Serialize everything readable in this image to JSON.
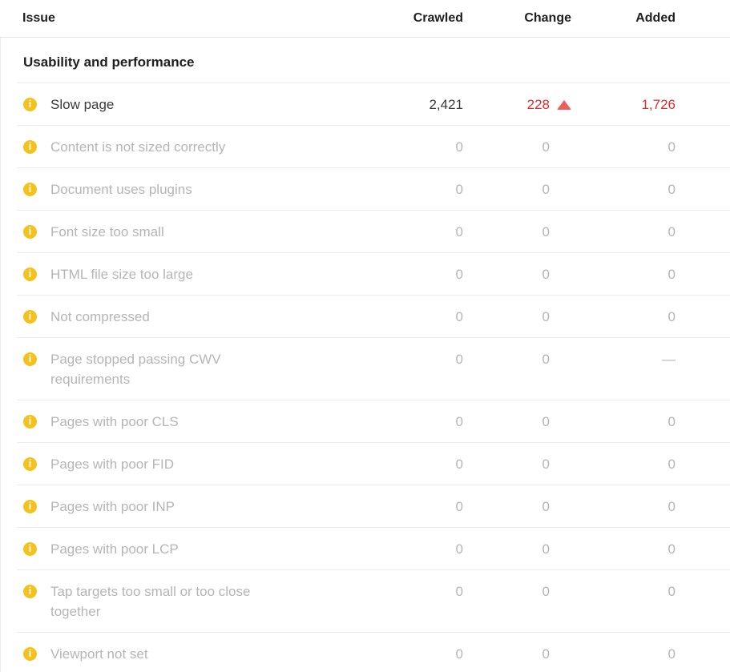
{
  "colors": {
    "header_text": "#1f1f1f",
    "active_text": "#3a3a3a",
    "muted_text": "#b5b5b5",
    "red": "#dd2c2c",
    "triangle_red": "#f05c5c",
    "icon_yellow": "#f3c21c",
    "divider": "#ebebeb",
    "header_divider": "#e2e2e2"
  },
  "table": {
    "columns": [
      {
        "key": "issue",
        "label": "Issue"
      },
      {
        "key": "crawled",
        "label": "Crawled"
      },
      {
        "key": "change",
        "label": "Change"
      },
      {
        "key": "added",
        "label": "Added"
      }
    ],
    "section_title": "Usability and performance",
    "info_icon_glyph": "i",
    "rows": [
      {
        "issue": "Slow page",
        "crawled": "2,421",
        "change": "228",
        "change_direction": "up",
        "added": "1,726",
        "state": "active"
      },
      {
        "issue": "Content is not sized correctly",
        "crawled": "0",
        "change": "0",
        "change_direction": "none",
        "added": "0",
        "state": "empty"
      },
      {
        "issue": "Document uses plugins",
        "crawled": "0",
        "change": "0",
        "change_direction": "none",
        "added": "0",
        "state": "empty"
      },
      {
        "issue": "Font size too small",
        "crawled": "0",
        "change": "0",
        "change_direction": "none",
        "added": "0",
        "state": "empty"
      },
      {
        "issue": "HTML file size too large",
        "crawled": "0",
        "change": "0",
        "change_direction": "none",
        "added": "0",
        "state": "empty"
      },
      {
        "issue": "Not compressed",
        "crawled": "0",
        "change": "0",
        "change_direction": "none",
        "added": "0",
        "state": "empty"
      },
      {
        "issue": "Page stopped passing CWV requirements",
        "crawled": "0",
        "change": "0",
        "change_direction": "none",
        "added": "—",
        "state": "empty"
      },
      {
        "issue": "Pages with poor CLS",
        "crawled": "0",
        "change": "0",
        "change_direction": "none",
        "added": "0",
        "state": "empty"
      },
      {
        "issue": "Pages with poor FID",
        "crawled": "0",
        "change": "0",
        "change_direction": "none",
        "added": "0",
        "state": "empty"
      },
      {
        "issue": "Pages with poor INP",
        "crawled": "0",
        "change": "0",
        "change_direction": "none",
        "added": "0",
        "state": "empty"
      },
      {
        "issue": "Pages with poor LCP",
        "crawled": "0",
        "change": "0",
        "change_direction": "none",
        "added": "0",
        "state": "empty"
      },
      {
        "issue": "Tap targets too small or too close together",
        "crawled": "0",
        "change": "0",
        "change_direction": "none",
        "added": "0",
        "state": "empty"
      },
      {
        "issue": "Viewport not set",
        "crawled": "0",
        "change": "0",
        "change_direction": "none",
        "added": "0",
        "state": "empty"
      }
    ]
  }
}
